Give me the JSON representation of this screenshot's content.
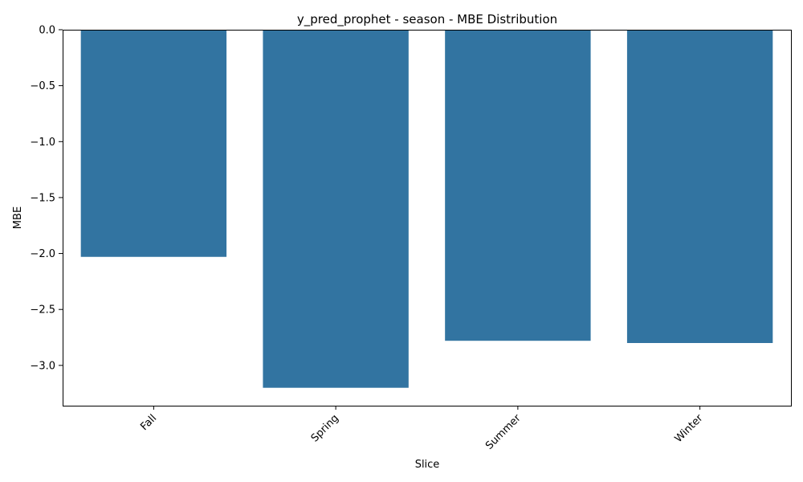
{
  "chart_data": {
    "type": "bar",
    "title": "y_pred_prophet - season - MBE Distribution",
    "xlabel": "Slice",
    "ylabel": "MBE",
    "categories": [
      "Fall",
      "Spring",
      "Summer",
      "Winter"
    ],
    "values": [
      -2.03,
      -3.2,
      -2.78,
      -2.8
    ],
    "ylim": [
      -3.36,
      0.0
    ],
    "yticks": [
      0.0,
      -0.5,
      -1.0,
      -1.5,
      -2.0,
      -2.5,
      -3.0
    ],
    "ytick_labels": [
      "0.0",
      "−0.5",
      "−1.0",
      "−1.5",
      "−2.0",
      "−2.5",
      "−3.0"
    ],
    "xtick_rotation_deg": 45,
    "grid": false,
    "legend": "none",
    "bar_color": "#3274a1"
  }
}
